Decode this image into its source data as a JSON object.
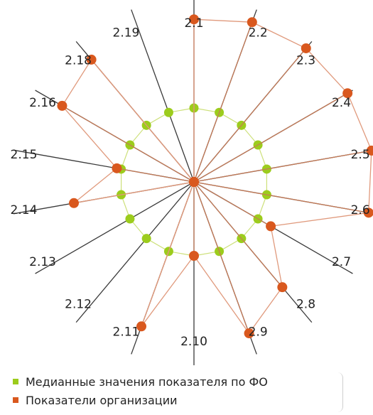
{
  "chart_data": {
    "type": "radar",
    "categories": [
      "2.1",
      "2.2",
      "2.3",
      "2.4",
      "2.5",
      "2.6",
      "2.7",
      "2.8",
      "2.9",
      "2.10",
      "2.11",
      "2.12",
      "2.13",
      "2.14",
      "2.15",
      "2.16",
      "2.18",
      "2.19"
    ],
    "series": [
      {
        "name": "Медианные значения показателя по ФО",
        "color": "#9ccc1c",
        "values": [
          1,
          1,
          1,
          1,
          1,
          1,
          1,
          1,
          1,
          1,
          1,
          1,
          1,
          1,
          1,
          1,
          1,
          1
        ]
      },
      {
        "name": "Показатели организации",
        "color": "#d9581e",
        "values": [
          2.2,
          2.3,
          2.36,
          2.4,
          2.44,
          2.4,
          1.2,
          1.86,
          2.18,
          1.0,
          2.08,
          0,
          0,
          1.65,
          1.06,
          2.06,
          2.16,
          0
        ]
      }
    ],
    "grid": false,
    "legend_position": "bottom-left"
  }
}
